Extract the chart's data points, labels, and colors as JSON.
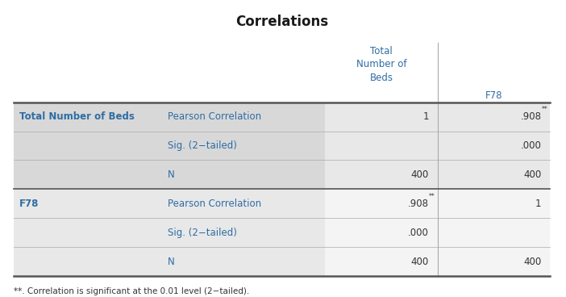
{
  "title": "Correlations",
  "title_color": "#1a1a1a",
  "title_fontsize": 12,
  "col_header1": "Total\nNumber of\nBeds",
  "col_header2": "F78",
  "header_color": "#2e6da4",
  "rows": [
    {
      "group": "Total Number of Beds",
      "stat": "Pearson Correlation",
      "v1": "1",
      "v1_sup": false,
      "v2": ".908",
      "v2_sup": true
    },
    {
      "group": "",
      "stat": "Sig. (2−tailed)",
      "v1": "",
      "v1_sup": false,
      "v2": ".000",
      "v2_sup": false
    },
    {
      "group": "",
      "stat": "N",
      "v1": "400",
      "v1_sup": false,
      "v2": "400",
      "v2_sup": false
    },
    {
      "group": "F78",
      "stat": "Pearson Correlation",
      "v1": ".908",
      "v1_sup": true,
      "v2": "1",
      "v2_sup": false
    },
    {
      "group": "",
      "stat": "Sig. (2−tailed)",
      "v1": ".000",
      "v1_sup": false,
      "v2": "",
      "v2_sup": false
    },
    {
      "group": "",
      "stat": "N",
      "v1": "400",
      "v1_sup": false,
      "v2": "400",
      "v2_sup": false
    }
  ],
  "group1_bg": "#d9d9d9",
  "group2_bg": "#efefef",
  "white_col_bg": "#ffffff",
  "group1_white_bg": "#e8e8e8",
  "group2_white_bg": "#f7f7f7",
  "line_color_thick": "#555555",
  "line_color_thin": "#aaaaaa",
  "text_blue": "#2e6da4",
  "text_dark": "#333333",
  "footnote": "**. Correlation is significant at the 0.01 level (2−tailed).",
  "fig_width": 7.02,
  "fig_height": 3.68,
  "dpi": 100
}
